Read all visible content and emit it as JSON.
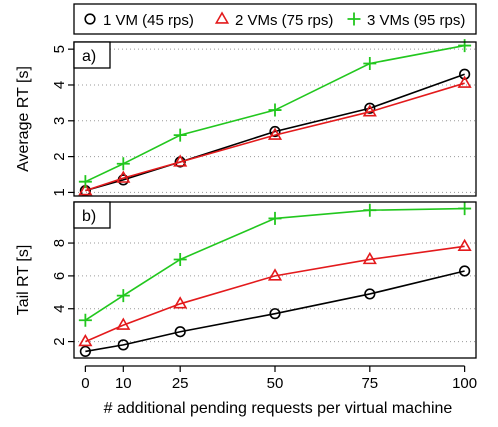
{
  "chart_data": {
    "type": "line",
    "x": [
      0,
      10,
      25,
      50,
      75,
      100
    ],
    "xlabel": "# additional pending requests per virtual machine",
    "x_tick_labels": [
      "0",
      "10",
      "25",
      "50",
      "75",
      "100"
    ],
    "legend": {
      "placement": "top",
      "entries": [
        {
          "label": "1 VM (45 rps)",
          "marker": "circle",
          "color": "#000000"
        },
        {
          "label": "2 VMs (75 rps)",
          "marker": "triangle",
          "color": "#e31a1c"
        },
        {
          "label": "3 VMs (95 rps)",
          "marker": "plus",
          "color": "#22c71e"
        }
      ]
    },
    "panels": [
      {
        "panel_label": "a)",
        "ylabel": "Average RT [s]",
        "ylim": [
          0.9,
          5.2
        ],
        "yticks": [
          1,
          2,
          3,
          4,
          5
        ],
        "grid": "horizontal-dotted",
        "series": [
          {
            "name": "1 VM (45 rps)",
            "values": [
              1.05,
              1.35,
              1.85,
              2.7,
              3.35,
              4.3
            ]
          },
          {
            "name": "2 VMs (75 rps)",
            "values": [
              1.05,
              1.4,
              1.85,
              2.6,
              3.25,
              4.05
            ]
          },
          {
            "name": "3 VMs (95 rps)",
            "values": [
              1.3,
              1.8,
              2.6,
              3.3,
              4.6,
              5.1
            ]
          }
        ]
      },
      {
        "panel_label": "b)",
        "ylabel": "Tail RT [s]",
        "ylim": [
          1.0,
          10.5
        ],
        "yticks": [
          2,
          4,
          6,
          8
        ],
        "grid": "horizontal-dotted",
        "series": [
          {
            "name": "1 VM (45 rps)",
            "values": [
              1.4,
              1.8,
              2.6,
              3.7,
              4.9,
              6.3
            ]
          },
          {
            "name": "2 VMs (75 rps)",
            "values": [
              2.0,
              3.0,
              4.3,
              6.0,
              7.0,
              7.8
            ]
          },
          {
            "name": "3 VMs (95 rps)",
            "values": [
              3.3,
              4.8,
              7.0,
              9.5,
              10.0,
              10.1
            ]
          }
        ]
      }
    ]
  }
}
